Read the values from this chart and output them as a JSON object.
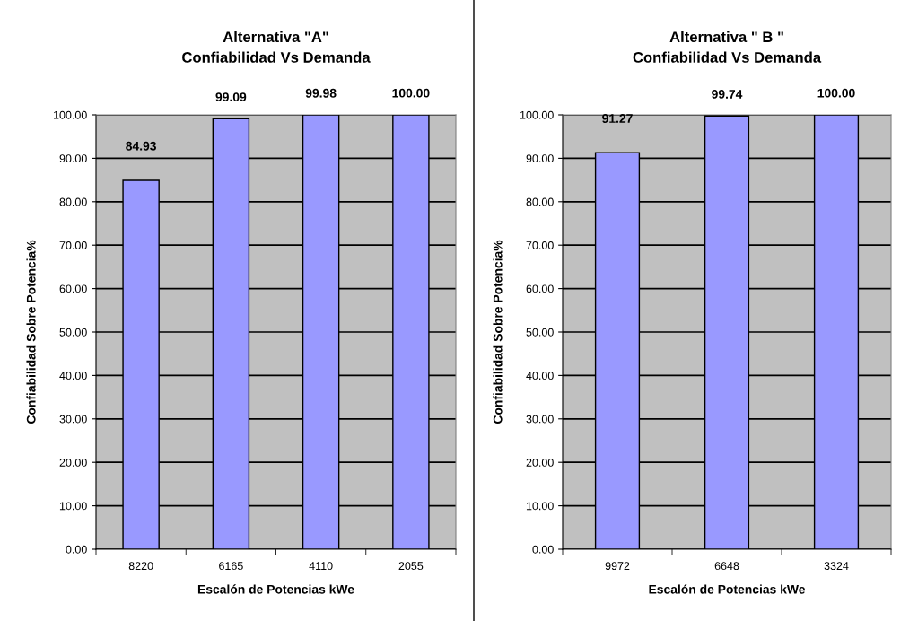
{
  "chart_data": [
    {
      "type": "bar",
      "title": "Alternativa \"A\"\nConfiabilidad Vs Demanda",
      "xlabel": "Escalón de Potencias kWe",
      "ylabel": "Confiabilidad Sobre Potencia%",
      "categories": [
        "8220",
        "6165",
        "4110",
        "2055"
      ],
      "values": [
        84.93,
        99.09,
        99.98,
        100.0
      ],
      "value_labels": [
        "84.93",
        "99.09",
        "99.98",
        "100.00"
      ],
      "color": "#9999ff",
      "ylim": [
        0,
        100
      ],
      "yticks": [
        {
          "value": 0,
          "label": "0.00"
        },
        {
          "value": 10,
          "label": "10.00"
        },
        {
          "value": 20,
          "label": "20.00"
        },
        {
          "value": 30,
          "label": "30.00"
        },
        {
          "value": 40,
          "label": "40.00"
        },
        {
          "value": 50,
          "label": "50.00"
        },
        {
          "value": 60,
          "label": "60.00"
        },
        {
          "value": 70,
          "label": "70.00"
        },
        {
          "value": 80,
          "label": "80.00"
        },
        {
          "value": 90,
          "label": "90.00"
        },
        {
          "value": 100,
          "label": "100.00"
        }
      ],
      "grid": "y"
    },
    {
      "type": "bar",
      "title": "Alternativa \" B \"\nConfiabilidad Vs Demanda",
      "xlabel": "Escalón de Potencias kWe",
      "ylabel": "Confiabilidad Sobre Potencia%",
      "categories": [
        "9972",
        "6648",
        "3324"
      ],
      "values": [
        91.27,
        99.74,
        100.0
      ],
      "value_labels": [
        "91.27",
        "99.74",
        "100.00"
      ],
      "color": "#9999ff",
      "ylim": [
        0,
        100
      ],
      "yticks": [
        {
          "value": 0,
          "label": "0.00"
        },
        {
          "value": 10,
          "label": "10.00"
        },
        {
          "value": 20,
          "label": "20.00"
        },
        {
          "value": 30,
          "label": "30.00"
        },
        {
          "value": 40,
          "label": "40.00"
        },
        {
          "value": 50,
          "label": "50.00"
        },
        {
          "value": 60,
          "label": "60.00"
        },
        {
          "value": 70,
          "label": "70.00"
        },
        {
          "value": 80,
          "label": "80.00"
        },
        {
          "value": 90,
          "label": "90.00"
        },
        {
          "value": 100,
          "label": "100.00"
        }
      ],
      "grid": "y"
    }
  ]
}
